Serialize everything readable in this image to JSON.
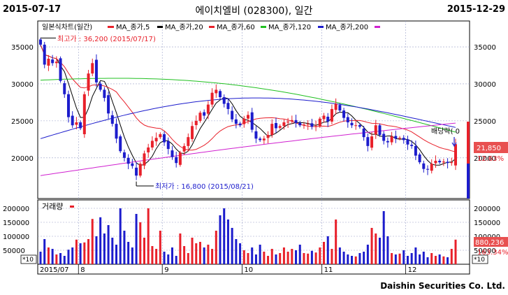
{
  "header": {
    "start_date": "2015-07-17",
    "end_date": "2015-12-29",
    "title": "에이치엘비 (028300), 일간"
  },
  "footer": {
    "credit": "Daishin Securities Co. Ltd."
  },
  "colors": {
    "up": "#e8202a",
    "down": "#1c1ccc",
    "ma5": "#000000",
    "ma20": "#e8202a",
    "ma60": "#20c020",
    "ma120": "#1c1ccc",
    "ma200": "#d020d0",
    "grid": "#9aa0c8",
    "badge_price": "#e85050"
  },
  "chart_data": [
    {
      "type": "candlestick",
      "legend": [
        "일본식차트(일간)",
        "MA_종가,5",
        "MA_종가,20",
        "MA_종가,60",
        "MA_종가,120",
        "MA_종가,200"
      ],
      "y_ticks": [
        20000,
        25000,
        30000,
        35000
      ],
      "y_tick_labels": [
        "20000",
        "25000",
        "30000",
        "35000"
      ],
      "ylim": [
        14500,
        38500
      ],
      "x_labels": [
        {
          "label": "2015/07",
          "index": 0
        },
        {
          "label": "8",
          "index": 10
        },
        {
          "label": "9",
          "index": 31
        },
        {
          "label": "10",
          "index": 51
        },
        {
          "label": "11",
          "index": 71
        },
        {
          "label": "12",
          "index": 92
        }
      ],
      "annotations": {
        "high": {
          "label": "최고가 : 36,200 (2015/07/17)",
          "index": 0,
          "value": 36200
        },
        "low": {
          "label": "최저가 : 16,800 (2015/08/21)",
          "index": 24,
          "value": 16800
        },
        "dividend": "배당락( 0"
      },
      "last_price": "21,850",
      "change_pct": "12.63%",
      "closes": [
        35300,
        32600,
        33400,
        32800,
        33000,
        30400,
        28600,
        25500,
        24400,
        24800,
        24000,
        28600,
        31400,
        32800,
        30200,
        29200,
        28100,
        26000,
        24600,
        22600,
        20900,
        20000,
        19200,
        18900,
        17600,
        19200,
        20600,
        21400,
        22300,
        22700,
        23200,
        22100,
        21200,
        20100,
        19300,
        20700,
        21600,
        22800,
        24300,
        25000,
        26100,
        25700,
        27200,
        28800,
        29200,
        28200,
        27300,
        26600,
        25200,
        24600,
        24400,
        25300,
        25800,
        23800,
        22600,
        22400,
        22600,
        23100,
        24600,
        24000,
        24300,
        24800,
        24900,
        25100,
        24700,
        24400,
        24500,
        24600,
        24200,
        24300,
        25300,
        25700,
        24900,
        26600,
        27300,
        26400,
        25400,
        24800,
        24400,
        24400,
        24200,
        22800,
        21600,
        22900,
        24400,
        23100,
        22300,
        22100,
        22900,
        22600,
        22700,
        22400,
        21800,
        21600,
        20300,
        19400,
        18500,
        18400,
        19200,
        19600,
        19400,
        19500,
        19300,
        19400,
        21850
      ],
      "volumes": [
        45000,
        90000,
        60000,
        55000,
        35000,
        40000,
        30000,
        52000,
        60000,
        88000,
        75000,
        78000,
        90000,
        162000,
        100000,
        168000,
        110000,
        140000,
        95000,
        70000,
        200000,
        120000,
        80000,
        60000,
        180000,
        150000,
        95000,
        200000,
        65000,
        55000,
        120000,
        45000,
        35000,
        60000,
        30000,
        110000,
        65000,
        40000,
        95000,
        75000,
        80000,
        60000,
        70000,
        55000,
        120000,
        175000,
        200000,
        160000,
        130000,
        90000,
        75000,
        50000,
        40000,
        60000,
        35000,
        70000,
        45000,
        30000,
        55000,
        35000,
        40000,
        60000,
        45000,
        55000,
        50000,
        70000,
        40000,
        38000,
        48000,
        42000,
        60000,
        80000,
        100000,
        55000,
        160000,
        60000,
        45000,
        35000,
        30000,
        28000,
        40000,
        45000,
        70000,
        130000,
        110000,
        95000,
        190000,
        100000,
        40000,
        35000,
        38000,
        50000,
        30000,
        40000,
        60000,
        35000,
        45000,
        25000,
        40000,
        30000,
        35000,
        28000,
        25000,
        55000,
        88000
      ],
      "volume_ticks": [
        50000,
        100000,
        150000,
        200000
      ],
      "volume_tick_labels": [
        "50000",
        "100000",
        "150000",
        "200000"
      ],
      "volume_ylim": [
        0,
        230000
      ],
      "volume_legend": "거래량",
      "volume_last": "880,236",
      "volume_change": "163.34%",
      "volume_unit": "*10"
    }
  ]
}
